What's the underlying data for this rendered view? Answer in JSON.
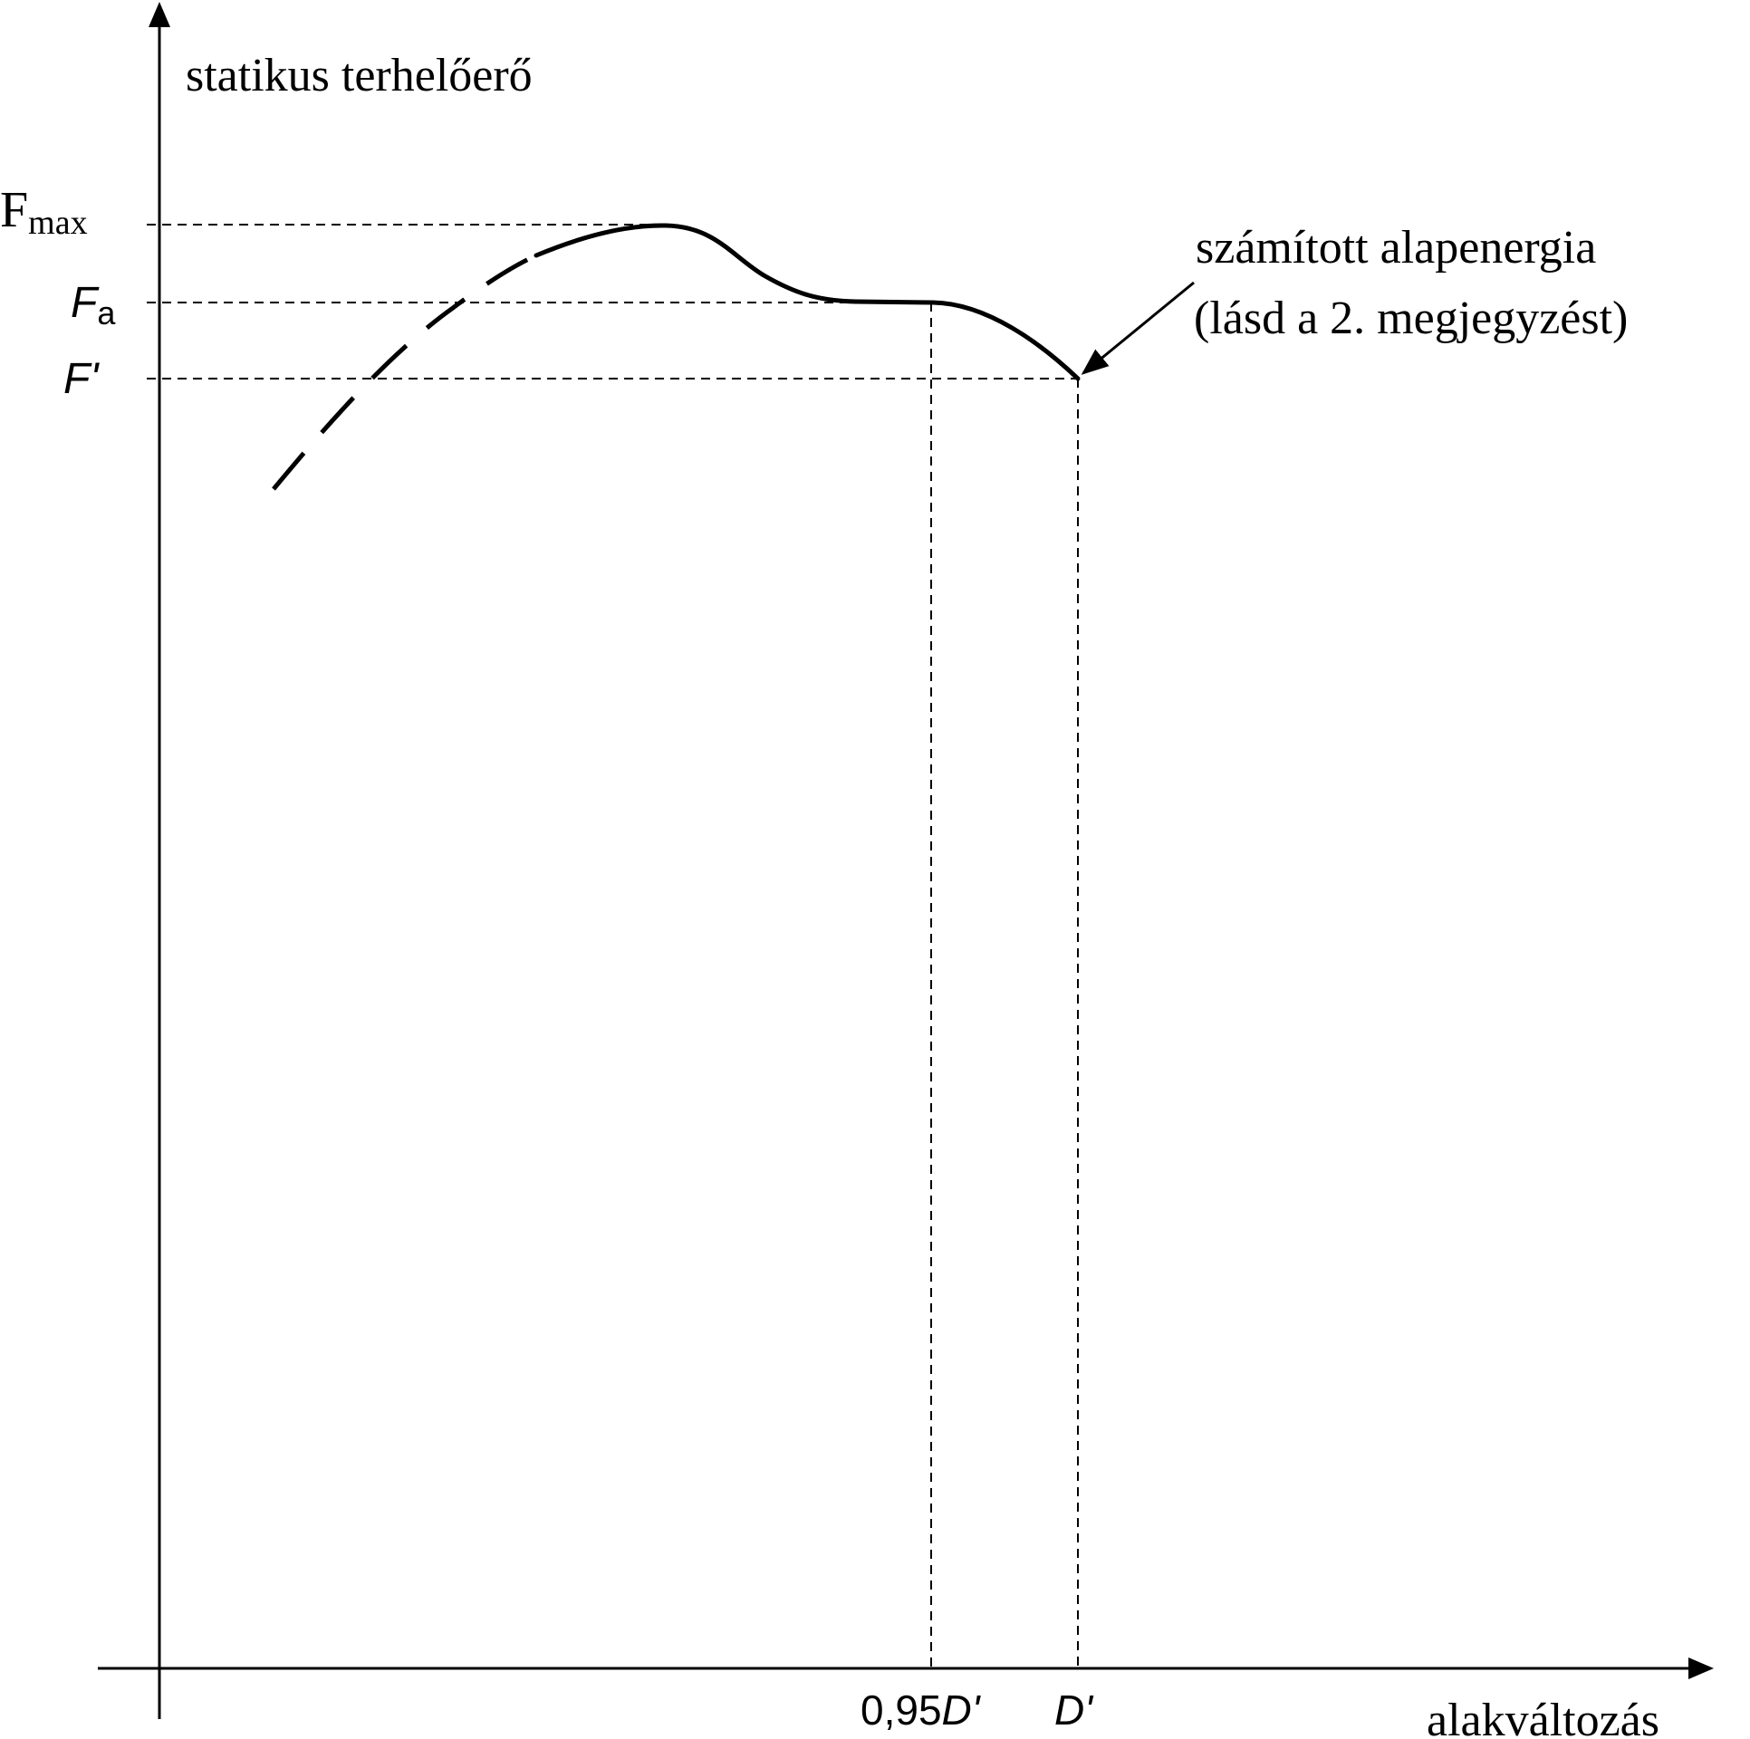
{
  "diagram": {
    "y_axis_label": "statikus terhelőerő",
    "x_axis_label": "alakváltozás",
    "y_marks": {
      "fmax_main": "F",
      "fmax_sub": "max",
      "fa_main": "F",
      "fa_sub": "a",
      "fprime": "F'"
    },
    "x_marks": {
      "d095_num": "0,95",
      "d095_sym": "D'",
      "dprime": "D'"
    },
    "annotation": {
      "line1": "számított alapenergia",
      "line2": "(lásd a 2. megjegyzést)"
    }
  }
}
